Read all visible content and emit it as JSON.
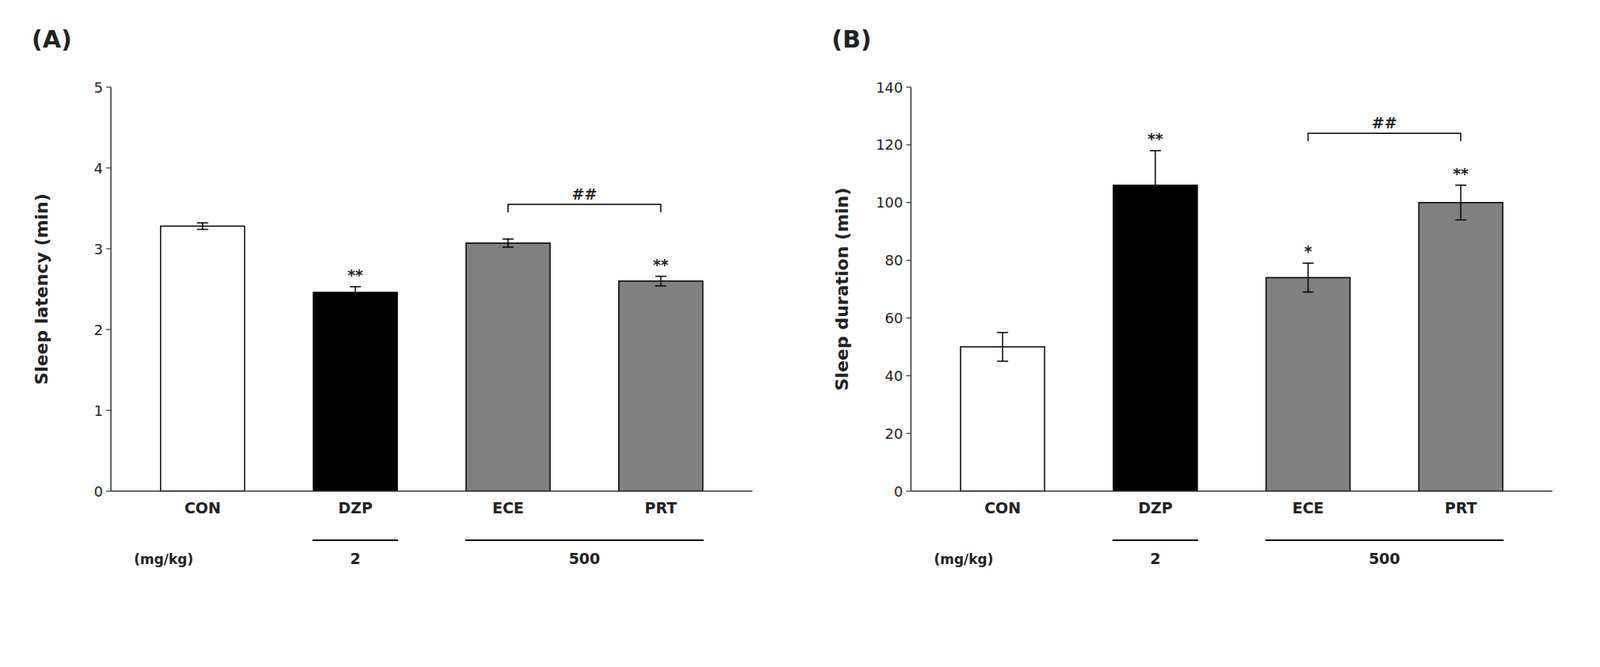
{
  "chart_data": [
    {
      "type": "bar",
      "title": "(A)",
      "ylabel": "Sleep latency (min)",
      "categories": [
        "CON",
        "DZP",
        "ECE",
        "PRT"
      ],
      "values": [
        3.28,
        2.46,
        3.07,
        2.6
      ],
      "errors": [
        0.04,
        0.07,
        0.05,
        0.06
      ],
      "colors": [
        "#ffffff",
        "#000000",
        "#808080",
        "#808080"
      ],
      "ylim": [
        0,
        5
      ],
      "yticks": [
        0,
        1,
        2,
        3,
        4,
        5
      ],
      "grid": false,
      "annotations": [
        {
          "type": "significance",
          "text": "**",
          "category_index": 1
        },
        {
          "type": "significance",
          "text": "**",
          "category_index": 3
        },
        {
          "type": "bracket",
          "text": "##",
          "from_index": 2,
          "to_index": 3,
          "y": 3.55
        },
        {
          "type": "dose",
          "text": "2",
          "category_indices": [
            1
          ]
        },
        {
          "type": "dose",
          "text": "500",
          "category_indices": [
            2,
            3
          ]
        },
        {
          "type": "unit",
          "text": "(mg/kg)"
        }
      ]
    },
    {
      "type": "bar",
      "title": "(B)",
      "ylabel": "Sleep duration (min)",
      "categories": [
        "CON",
        "DZP",
        "ECE",
        "PRT"
      ],
      "values": [
        50,
        106,
        74,
        100
      ],
      "errors": [
        5,
        12,
        5,
        6
      ],
      "colors": [
        "#ffffff",
        "#000000",
        "#808080",
        "#808080"
      ],
      "ylim": [
        0,
        140
      ],
      "yticks": [
        0,
        20,
        40,
        60,
        80,
        100,
        120,
        140
      ],
      "grid": false,
      "annotations": [
        {
          "type": "significance",
          "text": "**",
          "category_index": 1
        },
        {
          "type": "significance",
          "text": "*",
          "category_index": 2
        },
        {
          "type": "significance",
          "text": "**",
          "category_index": 3
        },
        {
          "type": "bracket",
          "text": "##",
          "from_index": 2,
          "to_index": 3,
          "y": 124
        },
        {
          "type": "dose",
          "text": "2",
          "category_indices": [
            1
          ]
        },
        {
          "type": "dose",
          "text": "500",
          "category_indices": [
            2,
            3
          ]
        },
        {
          "type": "unit",
          "text": "(mg/kg)"
        }
      ]
    }
  ]
}
